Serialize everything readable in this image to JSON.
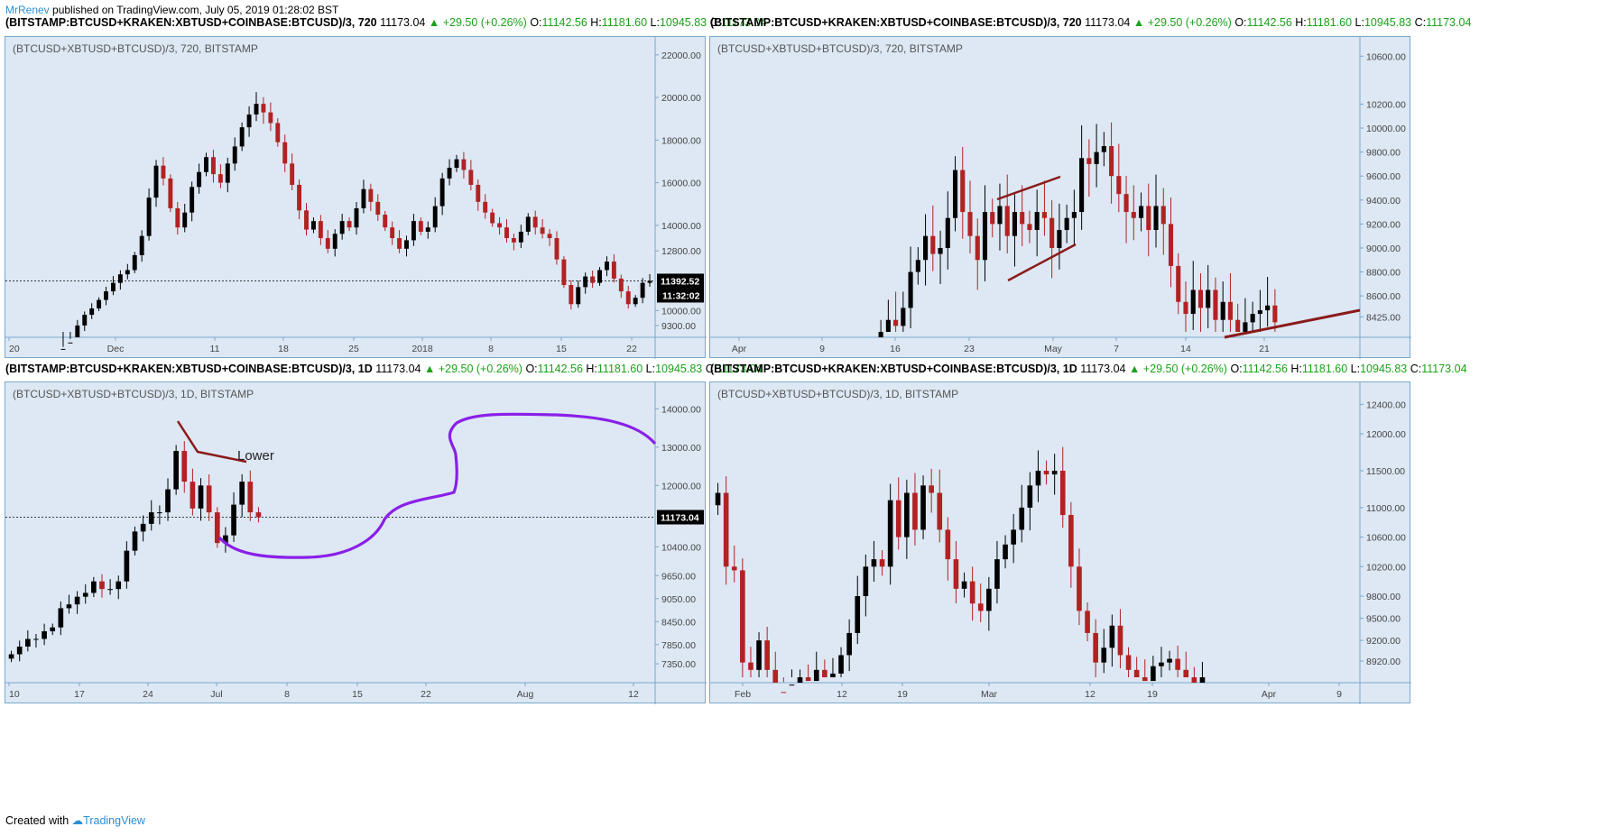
{
  "publish_line": {
    "user": "MrRenev",
    "rest": " published on TradingView.com, July 05, 2019 01:28:02 BST"
  },
  "footer": {
    "created_with": "Created with",
    "brand": "TradingView"
  },
  "colors": {
    "bg": "#dde8f4",
    "border": "#7aa7cc",
    "bear": "#b22222",
    "bull": "#000000",
    "purple": "#8a1fe8",
    "trend": "#8b1a1a"
  },
  "headers": [
    {
      "symbol": "(BITSTAMP:BTCUSD+KRAKEN:XBTUSD+COINBASE:BTCUSD)/3, 720",
      "last": "11173.04",
      "change": "▲ +29.50 (+0.26%)",
      "o": "11142.56",
      "h": "11181.60",
      "l": "10945.83",
      "c": "11173.04"
    },
    {
      "symbol": "(BITSTAMP:BTCUSD+KRAKEN:XBTUSD+COINBASE:BTCUSD)/3, 720",
      "last": "11173.04",
      "change": "▲ +29.50 (+0.26%)",
      "o": "11142.56",
      "h": "11181.60",
      "l": "10945.83",
      "c": "11173.04"
    },
    {
      "symbol": "(BITSTAMP:BTCUSD+KRAKEN:XBTUSD+COINBASE:BTCUSD)/3, 1D",
      "last": "11173.04",
      "change": "▲ +29.50 (+0.26%)",
      "o": "11142.56",
      "h": "11181.60",
      "l": "10945.83",
      "c": "11173.04"
    },
    {
      "symbol": "(BITSTAMP:BTCUSD+KRAKEN:XBTUSD+COINBASE:BTCUSD)/3, 1D",
      "last": "11173.04",
      "change": "▲ +29.50 (+0.26%)",
      "o": "11142.56",
      "h": "11181.60",
      "l": "10945.83",
      "c": "11173.04"
    }
  ],
  "chart_data": [
    {
      "type": "candlestick",
      "title": "(BTCUSD+XBTUSD+BTCUSD)/3, 720, BITSTAMP",
      "x_ticks": [
        "20",
        "Dec",
        "11",
        "18",
        "25",
        "2018",
        "8",
        "15",
        "22"
      ],
      "y_ticks": [
        "22000.00",
        "20000.00",
        "18000.00",
        "16000.00",
        "14000.00",
        "12800.00",
        "11392.52",
        "10000.00",
        "9300.00"
      ],
      "price_label": "11392.52",
      "time_label": "11:32:02",
      "ylim": [
        9000,
        22500
      ],
      "series_closes": [
        8200,
        8500,
        9300,
        9800,
        10100,
        10500,
        10900,
        11300,
        11700,
        11900,
        12600,
        13500,
        15300,
        16800,
        16200,
        14800,
        13900,
        14600,
        15800,
        16500,
        17200,
        16400,
        16000,
        16900,
        17700,
        18600,
        19200,
        19700,
        19300,
        18800,
        17900,
        16900,
        15900,
        14700,
        13800,
        14200,
        13400,
        12900,
        13600,
        14200,
        13900,
        14800,
        15700,
        15100,
        14500,
        13900,
        13400,
        12900,
        13300,
        14200,
        13700,
        13900,
        14900,
        16200,
        16700,
        17100,
        16600,
        15900,
        15100,
        14600,
        14100,
        13900,
        13400,
        13200,
        13700,
        14400,
        13900,
        13600,
        13400,
        12400,
        11200,
        10300,
        11100,
        11600,
        11300,
        11900,
        12300,
        11500,
        10900,
        10300,
        10600,
        11300,
        11392
      ]
    },
    {
      "type": "candlestick",
      "title": "(BTCUSD+XBTUSD+BTCUSD)/3, 720, BITSTAMP",
      "x_ticks": [
        "Apr",
        "9",
        "16",
        "23",
        "May",
        "7",
        "14",
        "21"
      ],
      "y_ticks": [
        "10600.00",
        "10200.00",
        "10000.00",
        "9800.00",
        "9600.00",
        "9400.00",
        "9200.00",
        "9000.00",
        "8800.00",
        "8600.00",
        "8425.00"
      ],
      "ylim": [
        8300,
        10700
      ],
      "series_closes": [
        8300,
        8400,
        8350,
        8500,
        8800,
        8900,
        9100,
        8950,
        9000,
        9250,
        9650,
        9300,
        9100,
        8900,
        9300,
        9200,
        9350,
        9100,
        9300,
        9200,
        9150,
        9300,
        9250,
        9000,
        9150,
        9250,
        9300,
        9750,
        9700,
        9800,
        9850,
        9600,
        9450,
        9300,
        9250,
        9350,
        9150,
        9350,
        9200,
        8850,
        8550,
        8450,
        8650,
        8500,
        8650,
        8400,
        8550,
        8400,
        8300,
        8380,
        8450,
        8480,
        8520,
        8380
      ]
    },
    {
      "type": "candlestick",
      "title": "(BTCUSD+XBTUSD+BTCUSD)/3, 1D, BITSTAMP",
      "x_ticks": [
        "10",
        "17",
        "24",
        "Jul",
        "8",
        "15",
        "22",
        "Aug",
        "12"
      ],
      "y_ticks": [
        "14000.00",
        "13000.00",
        "12000.00",
        "11173.04",
        "10400.00",
        "9650.00",
        "9050.00",
        "8450.00",
        "7850.00",
        "7350.00"
      ],
      "price_label": "11173.04",
      "annotation": "Lower",
      "ylim": [
        7000,
        14500
      ],
      "series_closes": [
        7600,
        7800,
        8000,
        8000,
        8200,
        8300,
        8800,
        8900,
        9100,
        9200,
        9500,
        9300,
        9300,
        9500,
        10300,
        10800,
        11000,
        11300,
        11300,
        11900,
        12900,
        12100,
        11400,
        12000,
        11300,
        10500,
        10700,
        11500,
        12100,
        11300,
        11173
      ]
    },
    {
      "type": "candlestick",
      "title": "(BTCUSD+XBTUSD+BTCUSD)/3, 1D, BITSTAMP",
      "x_ticks": [
        "Feb",
        "12",
        "19",
        "Mar",
        "12",
        "19",
        "Apr",
        "9"
      ],
      "y_ticks": [
        "12400.00",
        "12000.00",
        "11500.00",
        "11000.00",
        "10600.00",
        "10200.00",
        "9800.00",
        "9500.00",
        "9200.00",
        "8920.00"
      ],
      "ylim": [
        8700,
        12600
      ],
      "series_closes": [
        11200,
        10200,
        10150,
        8900,
        8800,
        9200,
        8800,
        8500,
        8400,
        8600,
        8700,
        8650,
        8800,
        8700,
        8750,
        9000,
        9300,
        9800,
        10200,
        10300,
        10200,
        11100,
        10600,
        11200,
        10700,
        11300,
        11200,
        10700,
        10300,
        9900,
        10000,
        9700,
        9600,
        9900,
        10300,
        10500,
        10700,
        11000,
        11300,
        11500,
        11450,
        11500,
        10900,
        10200,
        9600,
        9300,
        8900,
        9100,
        9400,
        9000,
        8800,
        8700,
        8650,
        8850,
        8900,
        8950,
        8800,
        8700,
        8600,
        8700
      ]
    }
  ]
}
